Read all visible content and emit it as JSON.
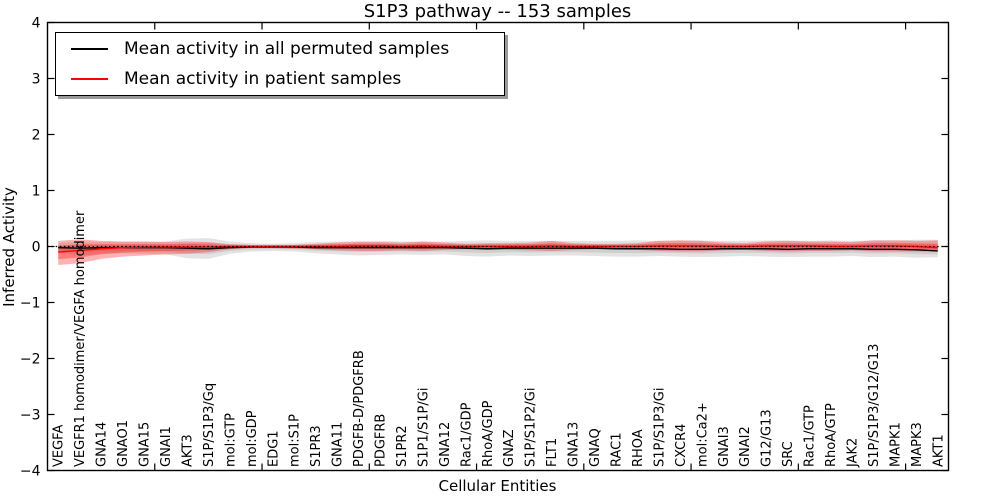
{
  "chart_data": {
    "type": "line",
    "title": "S1P3 pathway -- 153 samples",
    "xlabel": "Cellular Entities",
    "ylabel": "Inferred Activity",
    "ylim": [
      -4,
      4
    ],
    "yticks": [
      -4,
      -3,
      -2,
      -1,
      0,
      1,
      2,
      3,
      4
    ],
    "xtick_positions": [
      5,
      10,
      15,
      20,
      25,
      30,
      35,
      40
    ],
    "grid": false,
    "legend_position": "upper left",
    "reference_line_y": 0,
    "categories": [
      "VEGFA",
      "VEGFR1 homodimer/VEGFA homodimer",
      "GNA14",
      "GNAO1",
      "GNA15",
      "GNAI1",
      "AKT3",
      "S1P/S1P3/Gq",
      "mol:GTP",
      "mol:GDP",
      "EDG1",
      "mol:S1P",
      "S1PR3",
      "GNA11",
      "PDGFB-D/PDGFRB",
      "PDGFRB",
      "S1PR2",
      "S1P1/S1P/Gi",
      "GNA12",
      "Rac1/GDP",
      "RhoA/GDP",
      "GNAZ",
      "S1P/S1P2/Gi",
      "FLT1",
      "GNA13",
      "GNAQ",
      "RAC1",
      "RHOA",
      "S1P/S1P3/Gi",
      "CXCR4",
      "mol:Ca2+",
      "GNAI3",
      "GNAI2",
      "G12/G13",
      "SRC",
      "Rac1/GTP",
      "RhoA/GTP",
      "JAK2",
      "S1P/S1P3/G12/G13",
      "MAPK1",
      "MAPK3",
      "AKT1"
    ],
    "series": [
      {
        "name": "Mean activity in all permuted samples",
        "color": "#000000",
        "band_color": "#999999",
        "band_opacity": 0.28,
        "inner_band_fraction": 0.55,
        "mean": [
          -0.02,
          -0.03,
          -0.02,
          -0.02,
          -0.02,
          -0.02,
          -0.03,
          -0.04,
          -0.02,
          -0.01,
          -0.01,
          -0.01,
          -0.02,
          -0.02,
          -0.02,
          -0.02,
          -0.02,
          -0.02,
          -0.02,
          -0.03,
          -0.04,
          -0.03,
          -0.03,
          -0.03,
          -0.03,
          -0.03,
          -0.04,
          -0.04,
          -0.04,
          -0.05,
          -0.05,
          -0.04,
          -0.04,
          -0.04,
          -0.05,
          -0.04,
          -0.04,
          -0.04,
          -0.05,
          -0.05,
          -0.06,
          -0.08
        ],
        "band_upper": [
          0.06,
          0.09,
          0.08,
          0.08,
          0.08,
          0.09,
          0.14,
          0.15,
          0.09,
          0.06,
          0.05,
          0.06,
          0.08,
          0.09,
          0.1,
          0.1,
          0.09,
          0.09,
          0.09,
          0.1,
          0.11,
          0.1,
          0.1,
          0.1,
          0.1,
          0.1,
          0.1,
          0.11,
          0.1,
          0.11,
          0.11,
          0.1,
          0.1,
          0.11,
          0.11,
          0.1,
          0.11,
          0.1,
          0.11,
          0.11,
          0.12,
          0.12
        ],
        "band_lower": [
          -0.1,
          -0.16,
          -0.13,
          -0.12,
          -0.13,
          -0.14,
          -0.21,
          -0.22,
          -0.13,
          -0.09,
          -0.08,
          -0.09,
          -0.12,
          -0.14,
          -0.16,
          -0.15,
          -0.14,
          -0.15,
          -0.14,
          -0.17,
          -0.18,
          -0.16,
          -0.17,
          -0.16,
          -0.16,
          -0.17,
          -0.18,
          -0.18,
          -0.17,
          -0.18,
          -0.19,
          -0.18,
          -0.17,
          -0.18,
          -0.19,
          -0.18,
          -0.18,
          -0.17,
          -0.19,
          -0.18,
          -0.2,
          -0.19
        ]
      },
      {
        "name": "Mean activity in patient samples",
        "color": "#ff0000",
        "band_color": "#ff0000",
        "band_opacity": 0.3,
        "inner_band_fraction": 0.55,
        "mean": [
          -0.1,
          -0.07,
          -0.04,
          -0.02,
          -0.01,
          -0.01,
          -0.01,
          -0.01,
          0.0,
          0.0,
          0.0,
          0.0,
          0.0,
          0.0,
          0.01,
          0.01,
          0.0,
          0.01,
          0.0,
          0.0,
          0.0,
          0.0,
          0.0,
          0.01,
          0.0,
          0.0,
          0.0,
          0.0,
          0.01,
          0.01,
          0.01,
          0.0,
          0.0,
          0.01,
          0.01,
          0.01,
          0.0,
          0.0,
          0.01,
          0.01,
          0.0,
          -0.02
        ],
        "band_upper": [
          0.1,
          0.13,
          0.1,
          0.09,
          0.09,
          0.08,
          0.09,
          0.08,
          0.04,
          0.03,
          0.03,
          0.03,
          0.05,
          0.07,
          0.08,
          0.08,
          0.07,
          0.09,
          0.07,
          0.05,
          0.06,
          0.06,
          0.07,
          0.1,
          0.06,
          0.05,
          0.05,
          0.06,
          0.1,
          0.11,
          0.1,
          0.07,
          0.06,
          0.09,
          0.1,
          0.09,
          0.09,
          0.08,
          0.11,
          0.11,
          0.1,
          0.11
        ],
        "band_lower": [
          -0.33,
          -0.3,
          -0.22,
          -0.18,
          -0.16,
          -0.14,
          -0.13,
          -0.1,
          -0.05,
          -0.03,
          -0.03,
          -0.04,
          -0.05,
          -0.07,
          -0.08,
          -0.08,
          -0.07,
          -0.08,
          -0.06,
          -0.05,
          -0.06,
          -0.06,
          -0.07,
          -0.08,
          -0.06,
          -0.05,
          -0.05,
          -0.06,
          -0.08,
          -0.09,
          -0.09,
          -0.07,
          -0.06,
          -0.08,
          -0.09,
          -0.08,
          -0.08,
          -0.07,
          -0.09,
          -0.09,
          -0.09,
          -0.09
        ]
      }
    ]
  }
}
